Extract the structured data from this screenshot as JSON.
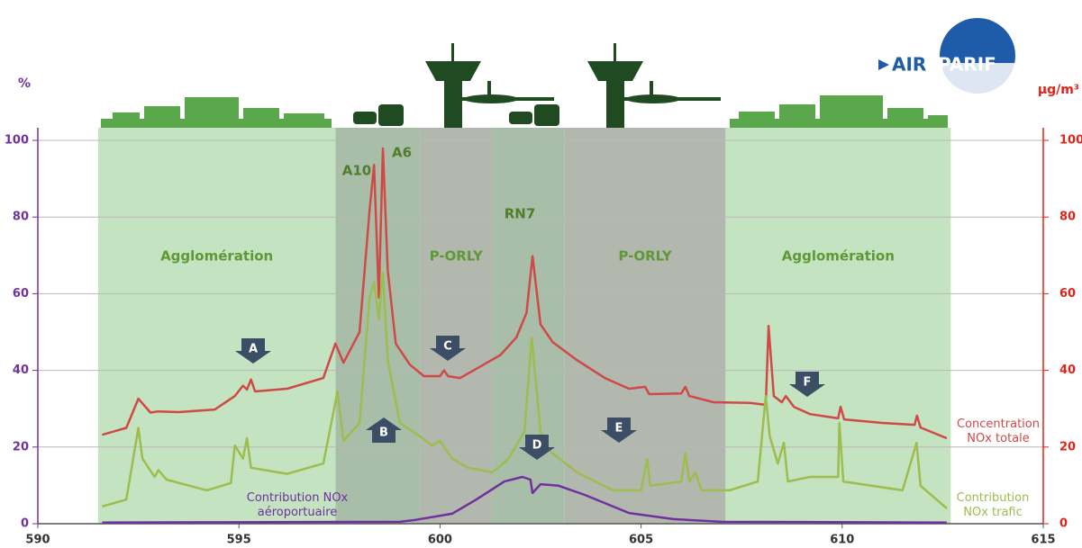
{
  "logo": {
    "left": "AIR",
    "right": "PARIF"
  },
  "chart_data": {
    "type": "line",
    "ylabel": "%",
    "y2label": "µg/m³",
    "xlim": [
      590,
      615
    ],
    "xticks": [
      590,
      595,
      600,
      605,
      610,
      615
    ],
    "ylim": [
      0,
      100
    ],
    "yticks": [
      0,
      20,
      40,
      60,
      80,
      100
    ],
    "y2lim": [
      0,
      100
    ],
    "y2ticks": [
      0,
      20,
      40,
      60,
      80,
      100
    ],
    "grid": true,
    "zones": [
      {
        "label": "Agglomération",
        "xrange": [
          591.5,
          597.4
        ],
        "color": "#c4e3c0"
      },
      {
        "xrange": [
          597.4,
          599.5
        ],
        "color": "#a9bea9"
      },
      {
        "label": "P-ORLY",
        "xrange": [
          599.5,
          601.3
        ],
        "color": "#b2b8ae"
      },
      {
        "xrange": [
          601.3,
          603.1
        ],
        "color": "#a9bea9"
      },
      {
        "label": "P-ORLY",
        "xrange": [
          603.1,
          607.1
        ],
        "color": "#b2b8ae"
      },
      {
        "label": "Agglomération",
        "xrange": [
          607.1,
          612.7
        ],
        "color": "#c4e3c0"
      }
    ],
    "annotations": [
      "A10",
      "A6",
      "RN7",
      "A",
      "B",
      "C",
      "D",
      "E",
      "F"
    ],
    "series": [
      {
        "name": "Concentration NOx totale",
        "color": "#cf4a47",
        "axis": "y2",
        "x": [
          591.6,
          592.2,
          592.5,
          592.8,
          593.0,
          593.5,
          594.4,
          594.9,
          595.1,
          595.2,
          595.3,
          595.4,
          596.2,
          597.1,
          597.4,
          597.6,
          598.0,
          598.25,
          598.36,
          598.48,
          598.58,
          598.7,
          598.9,
          599.25,
          599.6,
          600.0,
          600.1,
          600.2,
          600.5,
          600.9,
          601.5,
          601.9,
          602.15,
          602.3,
          602.5,
          602.8,
          603.4,
          604.1,
          604.7,
          605.1,
          605.2,
          606.0,
          606.1,
          606.2,
          606.8,
          607.7,
          608.1,
          608.17,
          608.3,
          608.5,
          608.6,
          608.8,
          609.2,
          609.9,
          609.96,
          610.05,
          611.0,
          611.8,
          611.86,
          611.95,
          612.6
        ],
        "values": [
          23.2,
          25,
          32.6,
          29,
          29.3,
          29.1,
          29.8,
          33.3,
          36,
          35,
          37.6,
          34.5,
          35.2,
          38,
          47,
          42,
          50,
          82,
          93.6,
          59,
          97.9,
          66,
          47,
          41.5,
          38.5,
          38.5,
          40,
          38.5,
          38,
          40.4,
          44,
          48.6,
          55,
          69.8,
          52,
          47.4,
          42.7,
          38,
          35.2,
          35.7,
          33.8,
          34,
          35.7,
          33.3,
          31.7,
          31.5,
          31,
          51.6,
          33.3,
          31.7,
          33.3,
          30.5,
          28.6,
          27.5,
          30.5,
          27.2,
          26.3,
          25.8,
          28.2,
          25.1,
          22.3
        ]
      },
      {
        "name": "Contribution NOx trafic",
        "color": "#9dbd4e",
        "x": [
          591.6,
          592.2,
          592.5,
          592.6,
          592.9,
          593.0,
          593.2,
          594.2,
          594.8,
          594.9,
          595.1,
          595.2,
          595.3,
          596.2,
          597.1,
          597.45,
          597.6,
          598.0,
          598.25,
          598.36,
          598.48,
          598.58,
          598.7,
          599.0,
          599.5,
          599.8,
          600.0,
          600.3,
          600.7,
          601.3,
          601.7,
          602.1,
          602.28,
          602.5,
          602.7,
          603.4,
          604.3,
          605.0,
          605.15,
          605.23,
          606.0,
          606.1,
          606.2,
          606.35,
          606.5,
          607.2,
          607.9,
          608.1,
          608.2,
          608.4,
          608.55,
          608.65,
          609.2,
          609.9,
          609.93,
          610.03,
          611.5,
          611.85,
          611.95,
          612.6
        ],
        "values": [
          4.5,
          6.3,
          25,
          17,
          12.2,
          14,
          11.5,
          8.7,
          10.6,
          20.4,
          17,
          22.3,
          14.6,
          13,
          15.7,
          34.5,
          21.6,
          26.3,
          59.2,
          63,
          53.3,
          65.5,
          42.7,
          26.3,
          22.8,
          20.4,
          21.6,
          17,
          14.6,
          13.4,
          16.9,
          24,
          48.6,
          24,
          19.2,
          13.4,
          8.7,
          8.7,
          16.9,
          9.9,
          11,
          18.5,
          11,
          13.4,
          8.7,
          8.7,
          11,
          33.3,
          22.8,
          15.7,
          21.1,
          11,
          12.2,
          12.2,
          26.3,
          11,
          8.7,
          21.1,
          9.9,
          4
        ]
      },
      {
        "name": "Contribution NOx aéroportuaire",
        "color": "#7030a0",
        "x": [
          591.6,
          599.0,
          599.4,
          600.3,
          600.9,
          601.6,
          602.05,
          602.25,
          602.3,
          602.5,
          602.95,
          603.6,
          604.7,
          605.8,
          607.0,
          612.6
        ],
        "values": [
          0.3,
          0.5,
          1,
          2.6,
          6.3,
          11,
          12.2,
          11.5,
          8,
          10.3,
          9.9,
          7.5,
          2.8,
          1.2,
          0.5,
          0.3
        ]
      }
    ]
  }
}
